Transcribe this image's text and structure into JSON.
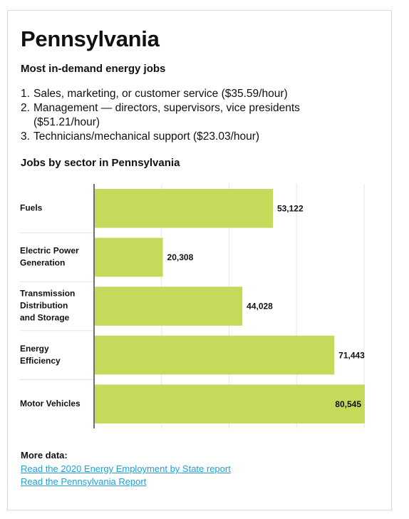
{
  "header": {
    "title": "Pennsylvania",
    "subtitle": "Most in-demand energy jobs"
  },
  "jobs": [
    {
      "num": "1.",
      "text": "Sales, marketing, or customer service ($35.59/hour)"
    },
    {
      "num": "2.",
      "text": "Management — directors, supervisors, vice presidents ($51.21/hour)"
    },
    {
      "num": "3.",
      "text": "Technicians/mechanical support ($23.03/hour)"
    }
  ],
  "chart_data": {
    "type": "bar",
    "orientation": "horizontal",
    "title": "Jobs by sector in Pennsylvania",
    "categories": [
      [
        "Fuels"
      ],
      [
        "Electric Power",
        "Generation"
      ],
      [
        "Transmission",
        "Distribution",
        "and Storage"
      ],
      [
        "Energy",
        "Efficiency"
      ],
      [
        "Motor Vehicles"
      ]
    ],
    "values": [
      53122,
      20308,
      44028,
      71443,
      80545
    ],
    "value_labels": [
      "53,122",
      "20,308",
      "44,028",
      "71,443",
      "80,545"
    ],
    "xlim": [
      0,
      80545
    ],
    "bar_color": "#c5d95a",
    "grid": true
  },
  "more": {
    "title": "More data:",
    "links": [
      "Read the 2020 Energy Employment by State report",
      "Read the Pennsylvania Report"
    ],
    "link_color": "#1fa0d8"
  }
}
